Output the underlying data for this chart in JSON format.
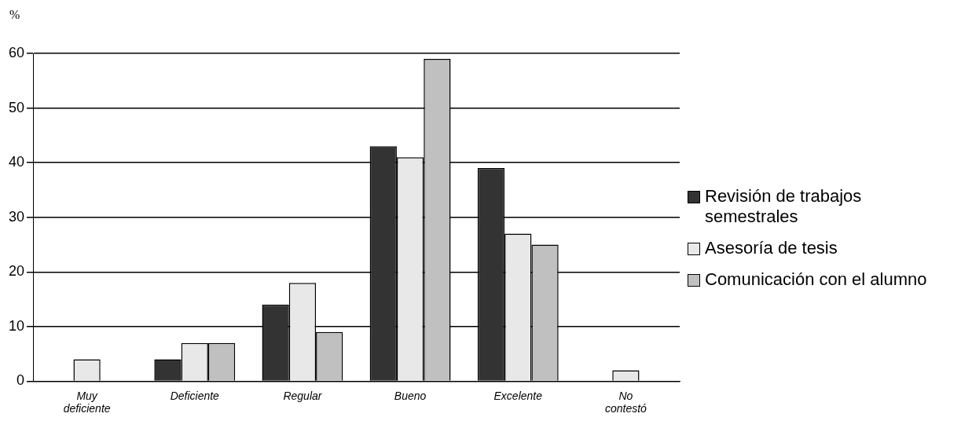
{
  "chart_data": {
    "type": "bar",
    "ylabel": "%",
    "categories": [
      "Muy deficiente",
      "Deficiente",
      "Regular",
      "Bueno",
      "Excelente",
      "No contestó"
    ],
    "series": [
      {
        "name": "Revisión de trabajos semestrales",
        "color": "#333333",
        "values": [
          0,
          4,
          14,
          43,
          39,
          0
        ]
      },
      {
        "name": "Asesoría de tesis",
        "color": "#e8e8e8",
        "values": [
          4,
          7,
          18,
          41,
          27,
          2
        ]
      },
      {
        "name": "Comunicación con el alumno",
        "color": "#c0c0c0",
        "values": [
          0,
          7,
          9,
          59,
          25,
          0
        ]
      }
    ],
    "ylim": [
      0,
      60
    ],
    "yticks": [
      0,
      10,
      20,
      30,
      40,
      50,
      60
    ],
    "grid": "y",
    "legend": "right"
  }
}
